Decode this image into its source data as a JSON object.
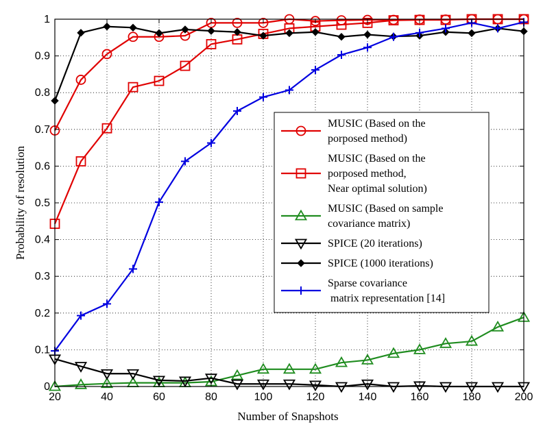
{
  "chart_data": {
    "type": "line",
    "title": "",
    "xlabel": "Number of Snapshots",
    "ylabel": "Probability of resolution",
    "xlim": [
      20,
      200
    ],
    "ylim": [
      0,
      1
    ],
    "grid": true,
    "legend_position": "center-right",
    "xticks": [
      20,
      40,
      60,
      80,
      100,
      120,
      140,
      160,
      180,
      200
    ],
    "xtick_labels": [
      "20",
      "40",
      "60",
      "80",
      "100",
      "120",
      "140",
      "160",
      "180",
      "200"
    ],
    "yticks": [
      0,
      0.1,
      0.2,
      0.3,
      0.4,
      0.5,
      0.6,
      0.7,
      0.8,
      0.9,
      1
    ],
    "ytick_labels": [
      "0",
      "0.1",
      "0.2",
      "0.3",
      "0.4",
      "0.5",
      "0.6",
      "0.7",
      "0.8",
      "0.9",
      "1"
    ],
    "x": [
      20,
      30,
      40,
      50,
      60,
      70,
      80,
      90,
      100,
      110,
      120,
      130,
      140,
      150,
      160,
      170,
      180,
      190,
      200
    ],
    "series": [
      {
        "name": "music-proposed",
        "legend": [
          "MUSIC (Based on the",
          "porposed method)"
        ],
        "color": "#e00000",
        "marker": "circle",
        "values": [
          0.697,
          0.835,
          0.905,
          0.952,
          0.952,
          0.955,
          0.99,
          0.99,
          0.99,
          1.0,
          0.995,
          0.997,
          0.998,
          0.998,
          0.999,
          0.999,
          1.0,
          1.0,
          1.0
        ]
      },
      {
        "name": "music-near-optimal",
        "legend": [
          "MUSIC (Based on the",
          "porposed method,",
          "Near optimal solution)"
        ],
        "color": "#e00000",
        "marker": "square",
        "values": [
          0.443,
          0.613,
          0.703,
          0.815,
          0.832,
          0.873,
          0.932,
          0.945,
          0.96,
          0.975,
          0.98,
          0.985,
          0.99,
          0.997,
          0.998,
          0.998,
          1.0,
          1.0,
          1.0
        ]
      },
      {
        "name": "music-sample-cov",
        "legend": [
          "MUSIC (Based on sample",
          "covariance matrix)"
        ],
        "color": "#1f8c1f",
        "marker": "triangle-up",
        "values": [
          0.0,
          0.005,
          0.008,
          0.01,
          0.01,
          0.01,
          0.013,
          0.03,
          0.047,
          0.047,
          0.047,
          0.065,
          0.072,
          0.09,
          0.1,
          0.117,
          0.123,
          0.162,
          0.188
        ]
      },
      {
        "name": "spice-20",
        "legend": [
          "SPICE (20 iterations)"
        ],
        "color": "#000000",
        "marker": "triangle-down",
        "values": [
          0.075,
          0.055,
          0.035,
          0.035,
          0.017,
          0.015,
          0.023,
          0.007,
          0.007,
          0.007,
          0.004,
          0.0,
          0.007,
          0.0,
          0.002,
          0.0,
          0.0,
          0.0,
          0.0
        ]
      },
      {
        "name": "spice-1000",
        "legend": [
          "SPICE (1000 iterations)"
        ],
        "color": "#000000",
        "marker": "diamond",
        "values": [
          0.778,
          0.963,
          0.98,
          0.977,
          0.962,
          0.972,
          0.968,
          0.965,
          0.955,
          0.962,
          0.965,
          0.952,
          0.958,
          0.953,
          0.955,
          0.965,
          0.962,
          0.975,
          0.967
        ]
      },
      {
        "name": "sparse-cov",
        "legend": [
          "Sparse covariance",
          " matrix representation [14]"
        ],
        "color": "#0000e0",
        "marker": "plus",
        "values": [
          0.097,
          0.193,
          0.225,
          0.32,
          0.502,
          0.613,
          0.663,
          0.75,
          0.788,
          0.807,
          0.862,
          0.903,
          0.923,
          0.952,
          0.963,
          0.975,
          0.99,
          0.975,
          0.992
        ]
      }
    ]
  }
}
